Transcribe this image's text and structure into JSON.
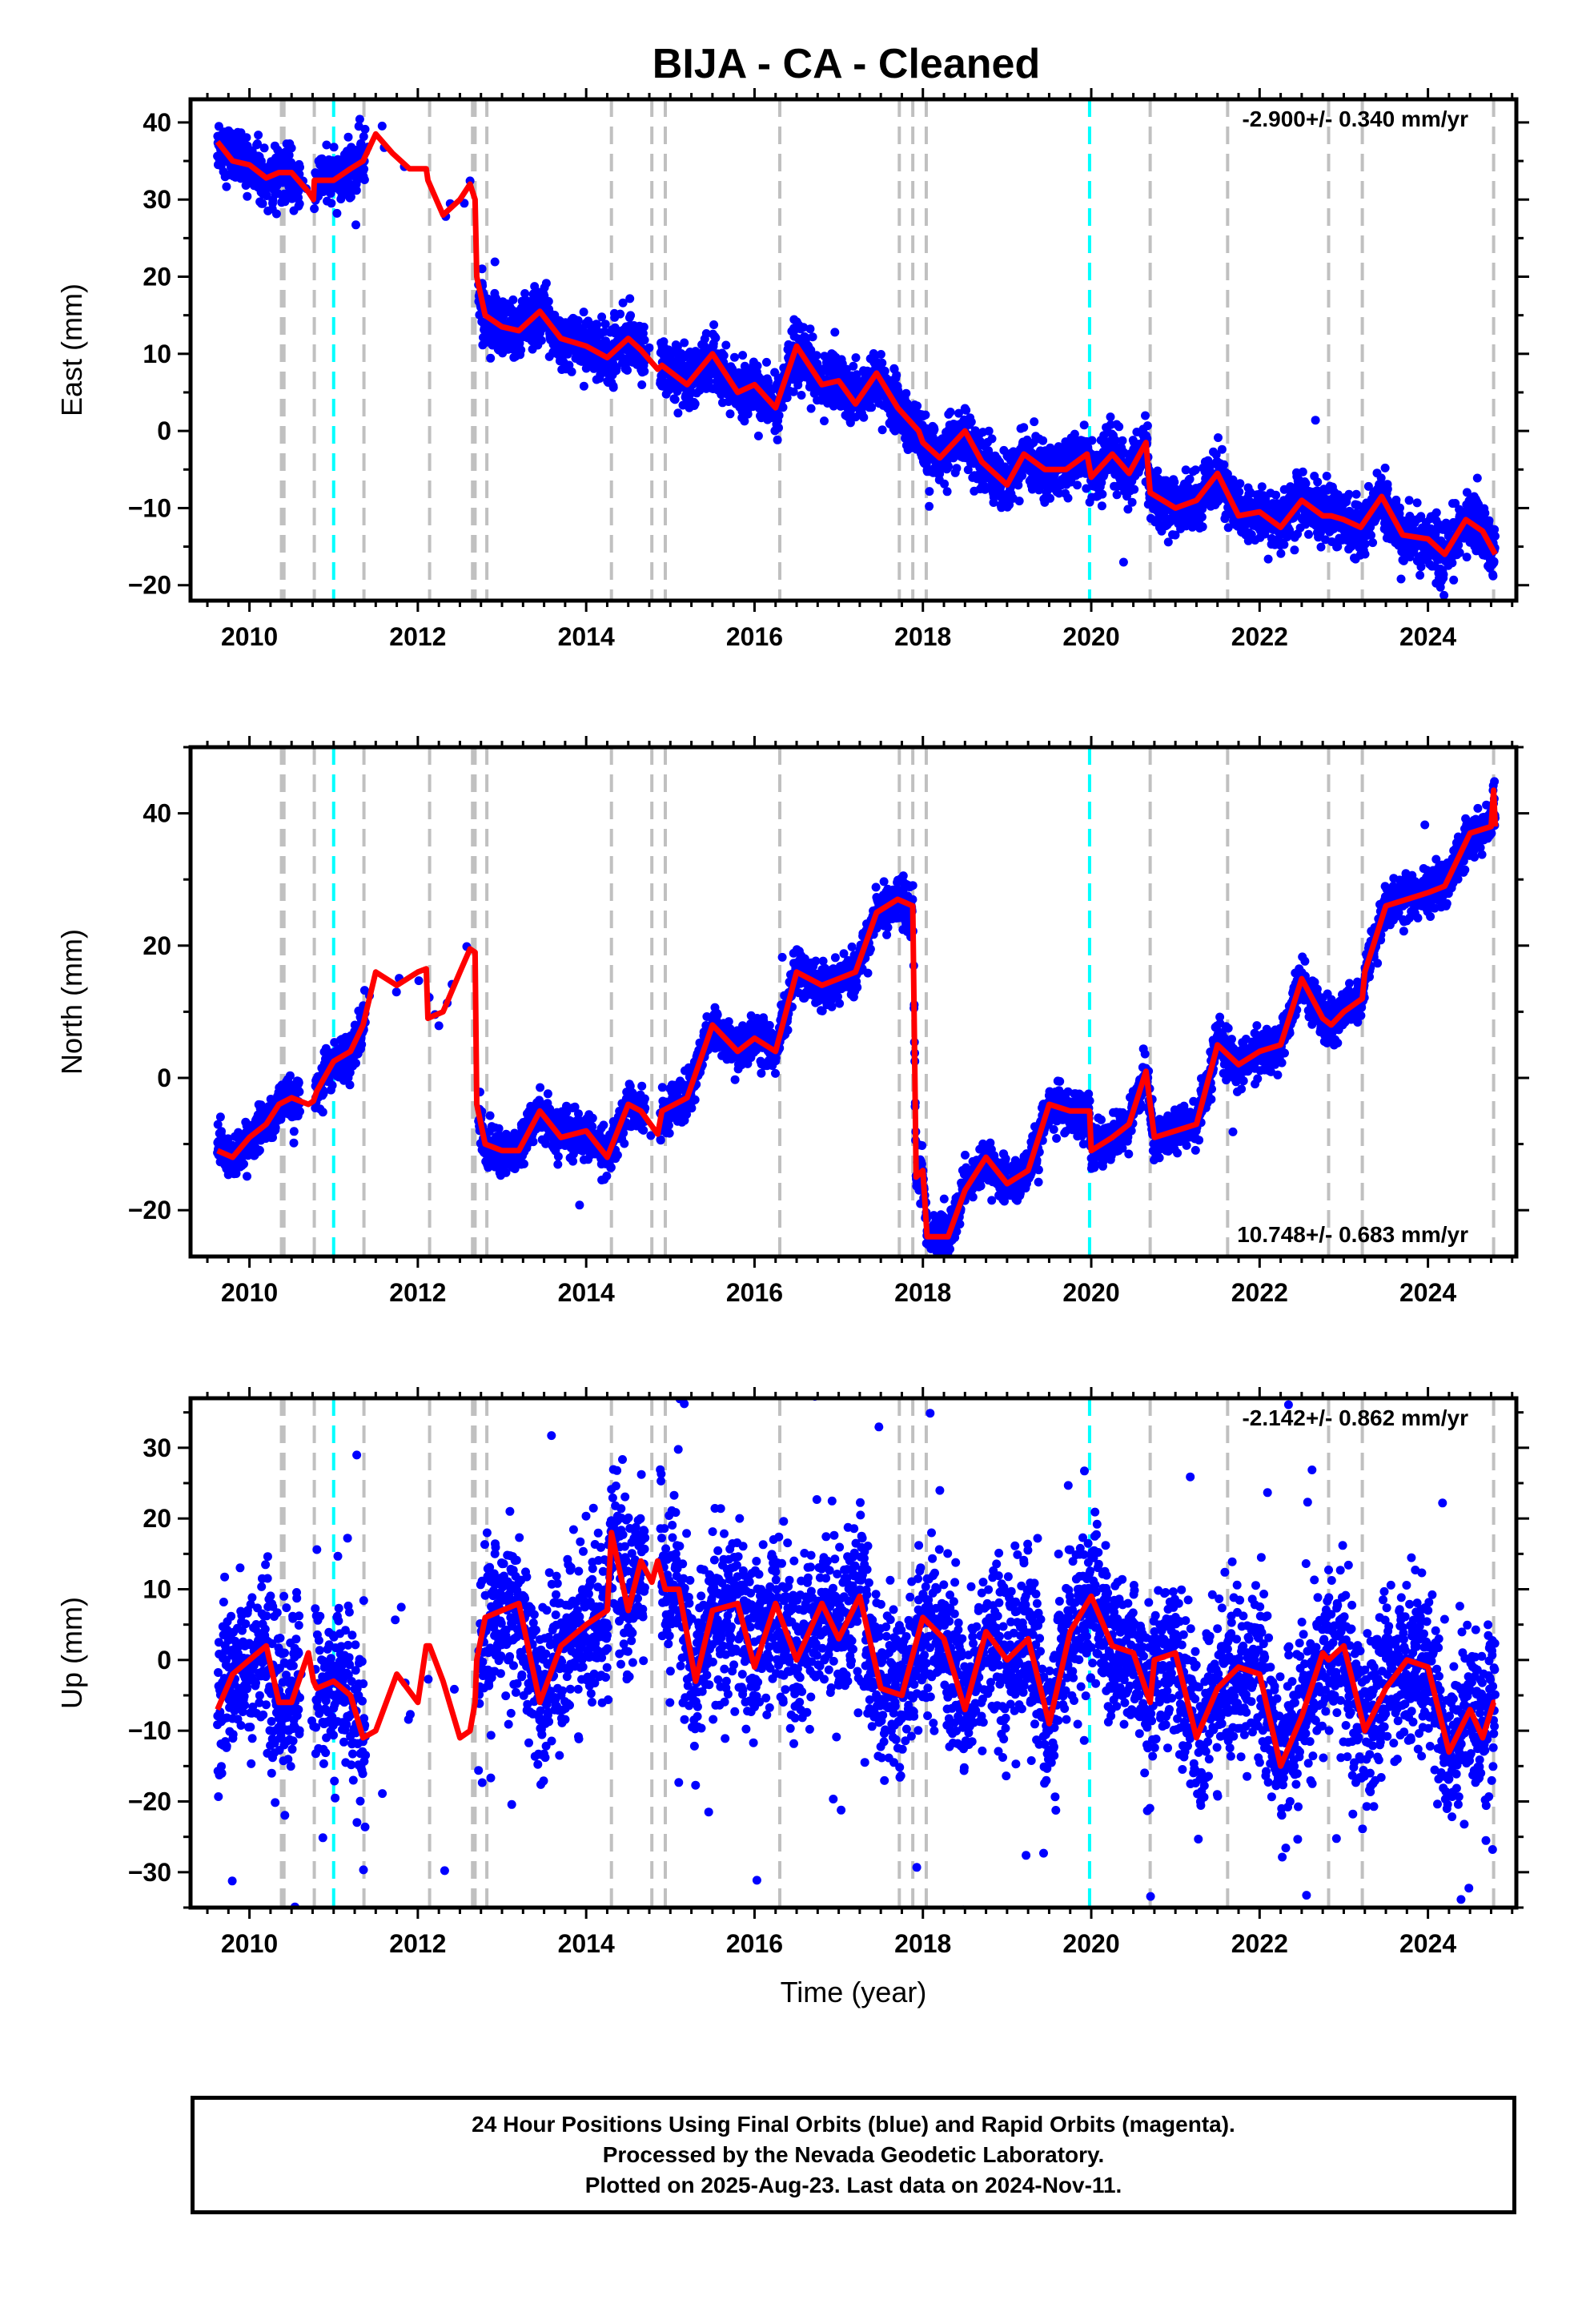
{
  "title": "BIJA  - CA - Cleaned",
  "chart_data": [
    {
      "type": "scatter",
      "ylabel": "East (mm)",
      "xlabel": "",
      "xlim": [
        2009.3,
        2025.05
      ],
      "ylim": [
        -22,
        43
      ],
      "xticks": [
        2010,
        2012,
        2014,
        2016,
        2018,
        2020,
        2022,
        2024
      ],
      "yticks": [
        -20,
        -10,
        0,
        10,
        20,
        30,
        40
      ],
      "rate_text": "-2.900+/- 0.340 mm/yr",
      "rate_position": "top-right",
      "model_curve": {
        "color": "#ff0000",
        "x": [
          2009.62,
          2009.8,
          2010.0,
          2010.2,
          2010.35,
          2010.5,
          2010.7,
          2010.76,
          2010.77,
          2011.0,
          2011.2,
          2011.35,
          2011.5,
          2011.7,
          2011.9,
          2012.1,
          2012.12,
          2012.3,
          2012.5,
          2012.62,
          2012.68,
          2012.7,
          2012.8,
          2013.0,
          2013.2,
          2013.45,
          2013.7,
          2014.0,
          2014.25,
          2014.5,
          2014.65,
          2014.85,
          2014.9,
          2015.2,
          2015.5,
          2015.8,
          2016.0,
          2016.25,
          2016.5,
          2016.8,
          2017.0,
          2017.2,
          2017.45,
          2017.7,
          2017.95,
          2018.0,
          2018.2,
          2018.5,
          2018.7,
          2019.0,
          2019.2,
          2019.45,
          2019.7,
          2019.95,
          2020.0,
          2020.25,
          2020.45,
          2020.65,
          2020.7,
          2021.0,
          2021.25,
          2021.5,
          2021.75,
          2022.0,
          2022.25,
          2022.5,
          2022.75,
          2022.85,
          2023.0,
          2023.2,
          2023.45,
          2023.7,
          2024.0,
          2024.2,
          2024.45,
          2024.65,
          2024.8
        ],
        "y": [
          37.5,
          35,
          34.5,
          32.8,
          33.5,
          33.5,
          31,
          30,
          32.5,
          32.5,
          34,
          35,
          38.5,
          36,
          34,
          34,
          32.5,
          28,
          30,
          32,
          30,
          20,
          15,
          13.5,
          13,
          15.5,
          12,
          11,
          9.5,
          12,
          10.5,
          8,
          8.5,
          6,
          10,
          5,
          6,
          3,
          11,
          6,
          6.5,
          3.5,
          7.5,
          3,
          0,
          -1.5,
          -3.5,
          0,
          -4,
          -7,
          -3,
          -5,
          -5,
          -3,
          -6,
          -3,
          -5.5,
          -1.5,
          -8,
          -10,
          -9,
          -5.5,
          -11,
          -10.5,
          -12.5,
          -9,
          -11,
          -11,
          -11.5,
          -12.5,
          -8.5,
          -13.5,
          -14,
          -16,
          -11.5,
          -13,
          -16
        ]
      },
      "events": {
        "gray_dashed": [
          2010.38,
          2010.41,
          2010.77,
          2011.36,
          2012.14,
          2012.65,
          2012.68,
          2012.82,
          2014.3,
          2014.78,
          2014.94,
          2016.3,
          2017.72,
          2017.88,
          2018.04,
          2020.7,
          2021.62,
          2022.82,
          2023.22,
          2024.78
        ],
        "cyan_dashed": [
          2011.0,
          2019.98
        ]
      },
      "data_gaps": [
        [
          2010.6,
          2010.78
        ],
        [
          2011.38,
          2012.72
        ],
        [
          2014.7,
          2014.88
        ]
      ],
      "point_color": "#0000ff"
    },
    {
      "type": "scatter",
      "ylabel": "North (mm)",
      "xlabel": "",
      "xlim": [
        2009.3,
        2025.05
      ],
      "ylim": [
        -27,
        50
      ],
      "xticks": [
        2010,
        2012,
        2014,
        2016,
        2018,
        2020,
        2022,
        2024
      ],
      "yticks": [
        -20,
        0,
        20,
        40
      ],
      "rate_text": "10.748+/- 0.683 mm/yr",
      "rate_position": "bottom-right",
      "model_curve": {
        "color": "#ff0000",
        "x": [
          2009.62,
          2009.8,
          2010.0,
          2010.2,
          2010.35,
          2010.5,
          2010.7,
          2010.76,
          2010.8,
          2011.0,
          2011.2,
          2011.35,
          2011.5,
          2011.75,
          2012.0,
          2012.1,
          2012.12,
          2012.3,
          2012.5,
          2012.62,
          2012.68,
          2012.7,
          2012.8,
          2013.0,
          2013.2,
          2013.45,
          2013.7,
          2014.0,
          2014.25,
          2014.5,
          2014.65,
          2014.85,
          2014.9,
          2015.2,
          2015.5,
          2015.8,
          2016.0,
          2016.25,
          2016.5,
          2016.8,
          2017.0,
          2017.2,
          2017.45,
          2017.7,
          2017.88,
          2017.92,
          2018.0,
          2018.05,
          2018.3,
          2018.5,
          2018.75,
          2019.0,
          2019.25,
          2019.5,
          2019.75,
          2019.98,
          2020.0,
          2020.25,
          2020.45,
          2020.65,
          2020.75,
          2021.0,
          2021.25,
          2021.5,
          2021.75,
          2022.0,
          2022.25,
          2022.5,
          2022.75,
          2022.85,
          2023.0,
          2023.22,
          2023.25,
          2023.5,
          2023.75,
          2024.0,
          2024.2,
          2024.5,
          2024.75,
          2024.78,
          2024.8
        ],
        "y": [
          -11,
          -12,
          -9,
          -7,
          -4,
          -3,
          -4,
          -3.5,
          -2,
          2.5,
          4,
          8,
          16,
          14,
          16,
          16.5,
          9,
          10,
          16,
          19.5,
          19,
          -4,
          -10,
          -11,
          -11,
          -5,
          -9,
          -8,
          -12,
          -4,
          -5,
          -8.5,
          -5,
          -3,
          8,
          4,
          6,
          4,
          16,
          14,
          15,
          16,
          25,
          27,
          26,
          -15,
          -14,
          -24,
          -24,
          -17,
          -12,
          -16,
          -14,
          -4,
          -5,
          -5,
          -11,
          -9,
          -7,
          1,
          -9,
          -8,
          -7,
          5,
          2,
          4,
          5,
          15,
          9,
          8,
          10,
          12,
          16,
          26,
          27,
          28,
          29,
          37,
          38,
          43.5,
          38
        ]
      },
      "events": {
        "gray_dashed": [
          2010.38,
          2010.41,
          2010.77,
          2011.36,
          2012.14,
          2012.65,
          2012.68,
          2012.82,
          2014.3,
          2014.78,
          2014.94,
          2016.3,
          2017.72,
          2017.88,
          2018.04,
          2020.7,
          2021.62,
          2022.82,
          2023.22,
          2024.78
        ],
        "cyan_dashed": [
          2011.0,
          2019.98
        ]
      },
      "data_gaps": [
        [
          2010.6,
          2010.78
        ],
        [
          2011.38,
          2012.72
        ],
        [
          2014.7,
          2014.88
        ]
      ],
      "point_color": "#0000ff"
    },
    {
      "type": "scatter",
      "ylabel": "Up (mm)",
      "xlabel": "Time (year)",
      "xlim": [
        2009.3,
        2025.05
      ],
      "ylim": [
        -35,
        37
      ],
      "xticks": [
        2010,
        2012,
        2014,
        2016,
        2018,
        2020,
        2022,
        2024
      ],
      "yticks": [
        -30,
        -20,
        -10,
        0,
        10,
        20,
        30
      ],
      "rate_text": "-2.142+/- 0.862 mm/yr",
      "rate_position": "top-right",
      "model_curve": {
        "color": "#ff0000",
        "x": [
          2009.62,
          2009.8,
          2010.0,
          2010.2,
          2010.35,
          2010.5,
          2010.7,
          2010.76,
          2010.8,
          2011.0,
          2011.2,
          2011.35,
          2011.5,
          2011.75,
          2012.0,
          2012.1,
          2012.14,
          2012.3,
          2012.5,
          2012.62,
          2012.68,
          2012.7,
          2012.8,
          2013.0,
          2013.2,
          2013.45,
          2013.7,
          2014.0,
          2014.25,
          2014.3,
          2014.5,
          2014.65,
          2014.78,
          2014.85,
          2014.94,
          2015.1,
          2015.3,
          2015.5,
          2015.8,
          2016.0,
          2016.25,
          2016.5,
          2016.8,
          2017.0,
          2017.25,
          2017.5,
          2017.75,
          2018.0,
          2018.25,
          2018.5,
          2018.75,
          2019.0,
          2019.25,
          2019.5,
          2019.75,
          2020.0,
          2020.25,
          2020.5,
          2020.7,
          2020.75,
          2021.0,
          2021.25,
          2021.5,
          2021.75,
          2022.0,
          2022.25,
          2022.5,
          2022.75,
          2022.82,
          2023.0,
          2023.25,
          2023.5,
          2023.75,
          2024.0,
          2024.25,
          2024.5,
          2024.65,
          2024.78,
          2024.8
        ],
        "y": [
          -7,
          -2,
          0,
          2,
          -6,
          -6,
          1,
          -3,
          -4,
          -3,
          -5,
          -11,
          -10,
          -2,
          -6,
          2,
          2,
          -3,
          -11,
          -10,
          -6,
          0,
          6,
          7,
          8,
          -6,
          2,
          5,
          7,
          18,
          7,
          14,
          11,
          14,
          10,
          10,
          -3,
          7,
          8,
          -1,
          8,
          0,
          8,
          3,
          9,
          -4,
          -5,
          6,
          3,
          -7,
          4,
          0,
          3,
          -9,
          4,
          9,
          2,
          1,
          -6,
          0,
          1,
          -11,
          -4,
          -1,
          -2,
          -15,
          -8,
          1,
          0,
          2,
          -10,
          -4,
          0,
          -1,
          -13,
          -7,
          -11,
          -6,
          -6
        ]
      },
      "events": {
        "gray_dashed": [
          2010.38,
          2010.41,
          2010.77,
          2011.36,
          2012.14,
          2012.65,
          2012.68,
          2012.82,
          2014.3,
          2014.78,
          2014.94,
          2016.3,
          2017.72,
          2017.88,
          2018.04,
          2020.7,
          2021.62,
          2022.82,
          2023.22,
          2024.78
        ],
        "cyan_dashed": [
          2011.0,
          2019.98
        ]
      },
      "data_gaps": [
        [
          2010.6,
          2010.78
        ],
        [
          2011.38,
          2012.72
        ],
        [
          2014.7,
          2014.88
        ]
      ],
      "point_color": "#0000ff"
    }
  ],
  "footer": {
    "line1": "24 Hour Positions Using Final Orbits (blue) and Rapid Orbits (magenta).",
    "line2": "Processed by the Nevada Geodetic Laboratory.",
    "line3": "Plotted on 2025-Aug-23. Last data on 2024-Nov-11."
  }
}
